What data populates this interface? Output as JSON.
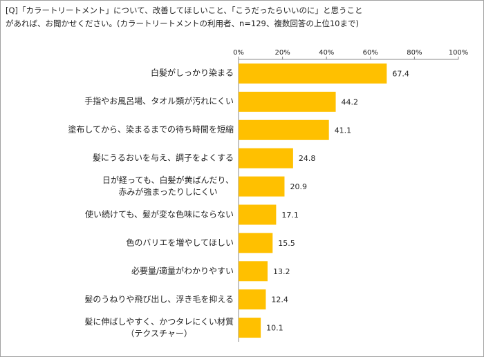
{
  "chart_data": {
    "type": "bar",
    "orientation": "horizontal",
    "title": "[Q]「カラートリートメント」について、改善してほしいこと、「こうだったらいいのに」と思うこと\nがあれば、お聞かせください。(カラートリートメントの利用者、n=129、複数回答の上位10まで)",
    "categories": [
      "白髪がしっかり染まる",
      "手指やお風呂場、タオル類が汚れにくい",
      "塗布してから、染まるまでの待ち時間を短縮",
      "髪にうるおいを与え、調子をよくする",
      "日が経っても、白髪が黄ばんだり、\n赤みが強まったりしにくい",
      "使い続けても、髪が変な色味にならない",
      "色のバリエを増やしてほしい",
      "必要量/適量がわかりやすい",
      "髪のうねりや飛び出し、浮き毛を抑える",
      "髪に伸ばしやすく、かつタレにくい材質\n（テクスチャー）"
    ],
    "values": [
      67.4,
      44.2,
      41.1,
      24.8,
      20.9,
      17.1,
      15.5,
      13.2,
      12.4,
      10.1
    ],
    "color": "#ffc000",
    "xlim": [
      0,
      100
    ],
    "xticks": [
      {
        "value": 0,
        "label": "0%"
      },
      {
        "value": 20,
        "label": "20%"
      },
      {
        "value": 40,
        "label": "40%"
      },
      {
        "value": 60,
        "label": "60%"
      },
      {
        "value": 80,
        "label": "80%"
      },
      {
        "value": 100,
        "label": "100%"
      }
    ]
  }
}
